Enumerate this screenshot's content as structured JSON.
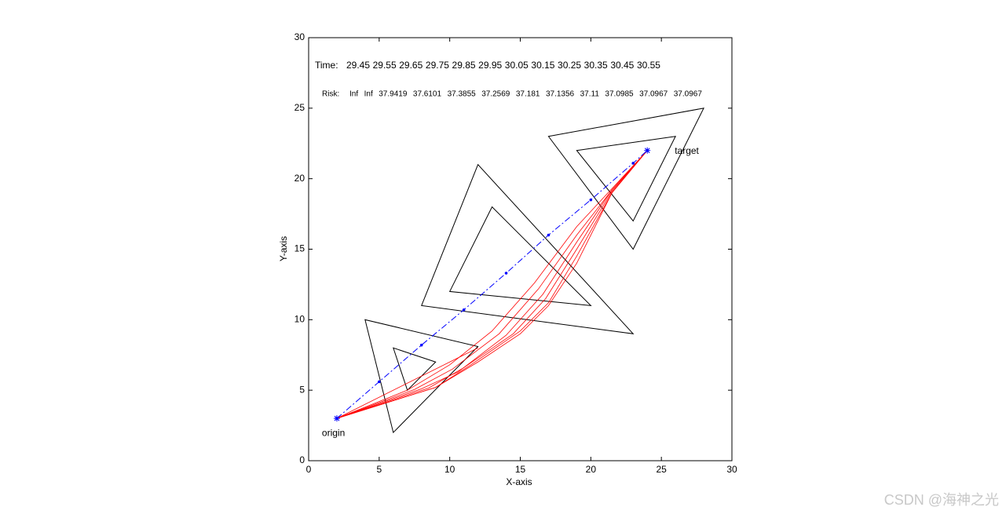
{
  "chart_data": {
    "type": "line",
    "xlabel": "X-axis",
    "ylabel": "Y-axis",
    "xlim": [
      0,
      30
    ],
    "ylim": [
      0,
      30
    ],
    "xticks": [
      0,
      5,
      10,
      15,
      20,
      25,
      30
    ],
    "yticks": [
      0,
      5,
      10,
      15,
      20,
      25,
      30
    ],
    "time_label": "Time:",
    "time_values": [
      29.45,
      29.55,
      29.65,
      29.75,
      29.85,
      29.95,
      30.05,
      30.15,
      30.25,
      30.35,
      30.45,
      30.55
    ],
    "risk_label": "Risk:",
    "risk_values": [
      "Inf",
      "Inf",
      37.9419,
      37.6101,
      37.3855,
      37.2569,
      37.181,
      37.1356,
      37.11,
      37.0985,
      37.0967,
      37.0967
    ],
    "obstacles": [
      {
        "color": "#000000",
        "x": [
          4,
          6,
          12
        ],
        "y": [
          10,
          2,
          8.1
        ]
      },
      {
        "color": "#000000",
        "x": [
          6,
          7,
          9
        ],
        "y": [
          8,
          5,
          7
        ]
      },
      {
        "color": "#000000",
        "x": [
          12,
          8,
          23
        ],
        "y": [
          21,
          11,
          9
        ]
      },
      {
        "color": "#000000",
        "x": [
          13,
          10,
          20
        ],
        "y": [
          18,
          12,
          11
        ]
      },
      {
        "color": "#000000",
        "x": [
          17,
          28,
          23
        ],
        "y": [
          23,
          25,
          15
        ]
      },
      {
        "color": "#000000",
        "x": [
          19,
          26,
          23
        ],
        "y": [
          22,
          23,
          17
        ]
      }
    ],
    "path": {
      "color": "#0000ff",
      "x": [
        2,
        5,
        8,
        11,
        14,
        17,
        20,
        23,
        24
      ],
      "y": [
        3,
        5.6,
        8.2,
        10.7,
        13.3,
        16,
        18.5,
        21.1,
        22
      ]
    },
    "curves": [
      {
        "color": "#ff0000",
        "x": [
          2,
          12
        ],
        "y": [
          3,
          8
        ]
      },
      {
        "color": "#ff0000",
        "x": [
          2,
          7,
          10,
          13,
          16,
          19,
          21.5,
          24
        ],
        "y": [
          3,
          5,
          6.8,
          9.2,
          12.6,
          16.6,
          19.3,
          22
        ]
      },
      {
        "color": "#ff0000",
        "x": [
          2,
          7.5,
          10.2,
          13.5,
          16.3,
          19,
          21.5,
          24
        ],
        "y": [
          3,
          5.05,
          6.5,
          9,
          12.2,
          16,
          19.2,
          22
        ]
      },
      {
        "color": "#ff0000",
        "x": [
          2,
          8,
          10.6,
          14,
          16.6,
          19,
          21.5,
          24
        ],
        "y": [
          3,
          5.1,
          6.3,
          8.9,
          11.8,
          15.5,
          19.2,
          22
        ]
      },
      {
        "color": "#ff0000",
        "x": [
          2,
          8.5,
          11,
          14.5,
          16.8,
          19,
          21.5,
          24
        ],
        "y": [
          3,
          5.15,
          6.6,
          9,
          11.5,
          15,
          19.1,
          22
        ]
      },
      {
        "color": "#ff0000",
        "x": [
          2,
          9,
          11.5,
          15,
          17,
          19,
          21.5,
          24
        ],
        "y": [
          3,
          5.2,
          6.8,
          9.2,
          11.2,
          14.5,
          19,
          22
        ]
      },
      {
        "color": "#ff0000",
        "x": [
          2,
          9,
          12,
          15,
          17,
          19,
          21.5,
          24
        ],
        "y": [
          3,
          5.2,
          7,
          9,
          11,
          14,
          19,
          22
        ]
      }
    ],
    "points": [
      {
        "label": "origin",
        "x": 2,
        "y": 3,
        "color": "#0000ff"
      },
      {
        "label": "target",
        "x": 24,
        "y": 22,
        "color": "#0000ff"
      }
    ],
    "watermark": "CSDN @海神之光"
  }
}
